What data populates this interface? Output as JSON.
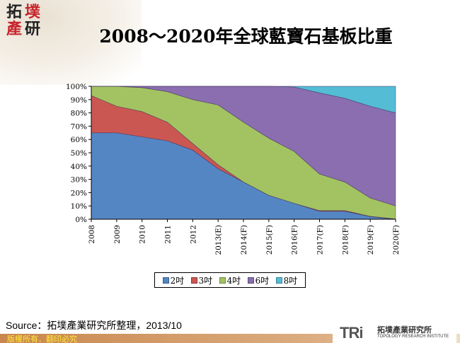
{
  "title": "2008～2020年全球藍寶石基板比重",
  "logo_text": "拓墣產研",
  "chart_data": {
    "type": "area",
    "stacked": "percent",
    "title": "2008～2020年全球藍寶石基板比重",
    "categories": [
      "2008",
      "2009",
      "2010",
      "2011",
      "2012",
      "2013(E)",
      "2014(F)",
      "2015(F)",
      "2016(F)",
      "2017(F)",
      "2018(F)",
      "2019(F)",
      "2020(F)"
    ],
    "series": [
      {
        "name": "2吋",
        "color": "#5586c4",
        "values": [
          65,
          65,
          62,
          59,
          52,
          38,
          28,
          18,
          12,
          6,
          6,
          2,
          0
        ]
      },
      {
        "name": "3吋",
        "color": "#cb5752",
        "values": [
          28,
          20,
          19,
          14,
          5,
          3,
          0,
          0,
          0,
          0.5,
          0.5,
          0.2,
          0.2
        ]
      },
      {
        "name": "4吋",
        "color": "#a3c363",
        "values": [
          7,
          15,
          18,
          23,
          33,
          45,
          45,
          43,
          39,
          27.5,
          21.5,
          13.8,
          9.8
        ]
      },
      {
        "name": "6吋",
        "color": "#8a6eb0",
        "values": [
          0,
          0,
          1,
          4,
          10,
          14,
          27,
          39,
          48.5,
          61,
          63,
          69,
          70
        ]
      },
      {
        "name": "8吋",
        "color": "#55bcd6",
        "values": [
          0,
          0,
          0,
          0,
          0,
          0,
          0,
          0,
          0.5,
          5,
          9,
          15,
          20
        ]
      }
    ],
    "ylim": [
      0,
      100
    ],
    "yticks": [
      "0%",
      "10%",
      "20%",
      "30%",
      "40%",
      "50%",
      "60%",
      "70%",
      "80%",
      "90%",
      "100%"
    ],
    "grid": false,
    "legend": "bottom"
  },
  "source": "Source：拓墣產業研究所整理，2013/10",
  "footer": {
    "copyright": "版權所有．翻印必究",
    "brand_mark": "TRi",
    "brand_name": "拓墣產業研究所",
    "brand_en": "TOPOLOGY RESEARCH INSTITUTE"
  }
}
